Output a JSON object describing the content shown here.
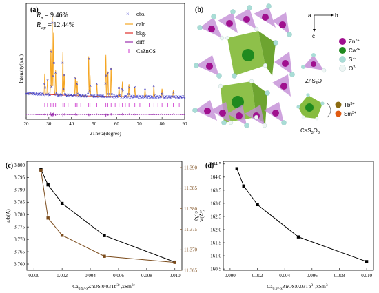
{
  "panels": {
    "a": "(a)",
    "b": "(b)",
    "c": "(c)",
    "d": "(d)"
  },
  "xrd": {
    "rp_label": "R",
    "rp_sub": "p",
    "rp_value": " = 9.46%",
    "rwp_label": "R",
    "rwp_sub": "wp",
    "rwp_value": " = 12.44%",
    "legend": [
      "obs.",
      "calc.",
      "bkg.",
      "diff.",
      "CaZnOS"
    ],
    "xlabel": "2Theta(degree)",
    "ylabel": "Intensity(a.u.)",
    "colors": {
      "obs": "#3a3acc",
      "calc": "#f5a623",
      "bkg": "#e0302a",
      "diff": "#9b2fae",
      "ticks": "#cc33cc"
    }
  },
  "structure": {
    "axes": {
      "a": "a",
      "b": "b",
      "c": "c"
    },
    "legend": [
      {
        "label": "Zn",
        "sup": "2+",
        "color": "#a0108f"
      },
      {
        "label": "Ca",
        "sup": "2+",
        "color": "#1f8a1f"
      },
      {
        "label": "S",
        "sup": "2-",
        "color": "#a9ddd6"
      },
      {
        "label": "O",
        "sup": "2-",
        "color": "#e8f2f0"
      }
    ],
    "poly1": {
      "main": "ZnS",
      "sub1": "3",
      "tail": "O"
    },
    "poly2": {
      "main": "CaS",
      "sub1": "3",
      "tail": "O",
      "sub2": "3"
    },
    "dopants": [
      {
        "label": "Tb",
        "sup": "3+",
        "color": "#8a6a10"
      },
      {
        "label": "Sm",
        "sup": "3+",
        "color": "#e05a10"
      }
    ]
  },
  "chart_data": [
    {
      "type": "line",
      "x": [
        0.0005,
        0.001,
        0.002,
        0.005,
        0.01
      ],
      "series": [
        {
          "values": [
            3.7982,
            3.792,
            3.7845,
            3.7715,
            3.7608
          ],
          "color": "#000000",
          "axis": "left"
        },
        {
          "values": [
            11.3893,
            11.3777,
            11.3735,
            11.3684,
            11.3669
          ],
          "color": "#7a4a1a",
          "axis": "right"
        }
      ],
      "xlabel": "Ca0.97-xZnOS:0.03Tb3+,xSm3+",
      "xlabel_parts": {
        "base": "Ca",
        "sub": "0.97-x",
        "mid": "ZnOS:0.03Tb",
        "sup1": "3+",
        "mid2": ",xSm",
        "sup2": "3+"
      },
      "ylabel": "a/b(Å)",
      "y2label": "c(Å)",
      "xlim": [
        -0.0005,
        0.0105
      ],
      "ylim": [
        3.7575,
        3.8015
      ],
      "y2lim": [
        11.365,
        11.3915
      ],
      "xticks": [
        "0.000",
        "0.002",
        "0.004",
        "0.006",
        "0.008",
        "0.010"
      ],
      "yticks": [
        "3.760",
        "3.765",
        "3.770",
        "3.775",
        "3.780",
        "3.785",
        "3.790",
        "3.795",
        "3.800"
      ],
      "y2ticks": [
        "11.365",
        "11.370",
        "11.375",
        "11.380",
        "11.385",
        "11.390"
      ]
    },
    {
      "type": "line",
      "x": [
        0.0005,
        0.001,
        0.002,
        0.005,
        0.01
      ],
      "series": [
        {
          "values": [
            164.32,
            163.66,
            162.95,
            161.72,
            160.78
          ],
          "color": "#000000"
        }
      ],
      "xlabel": "Ca0.97-xZnOS:0.03Tb3+,xSm3+",
      "xlabel_parts": {
        "base": "Ca",
        "sub": "0.97-x",
        "mid": "ZnOS:0.03Tb",
        "sup1": "3+",
        "mid2": ",xSm",
        "sup2": "3+"
      },
      "ylabel": "V(Å³)",
      "xlim": [
        -0.0005,
        0.0105
      ],
      "ylim": [
        160.45,
        164.6
      ],
      "xticks": [
        "0.000",
        "0.002",
        "0.004",
        "0.006",
        "0.008",
        "0.010"
      ],
      "yticks": [
        "160.5",
        "161.0",
        "161.5",
        "162.0",
        "162.5",
        "163.0",
        "163.5",
        "164.0",
        "164.5"
      ]
    }
  ]
}
